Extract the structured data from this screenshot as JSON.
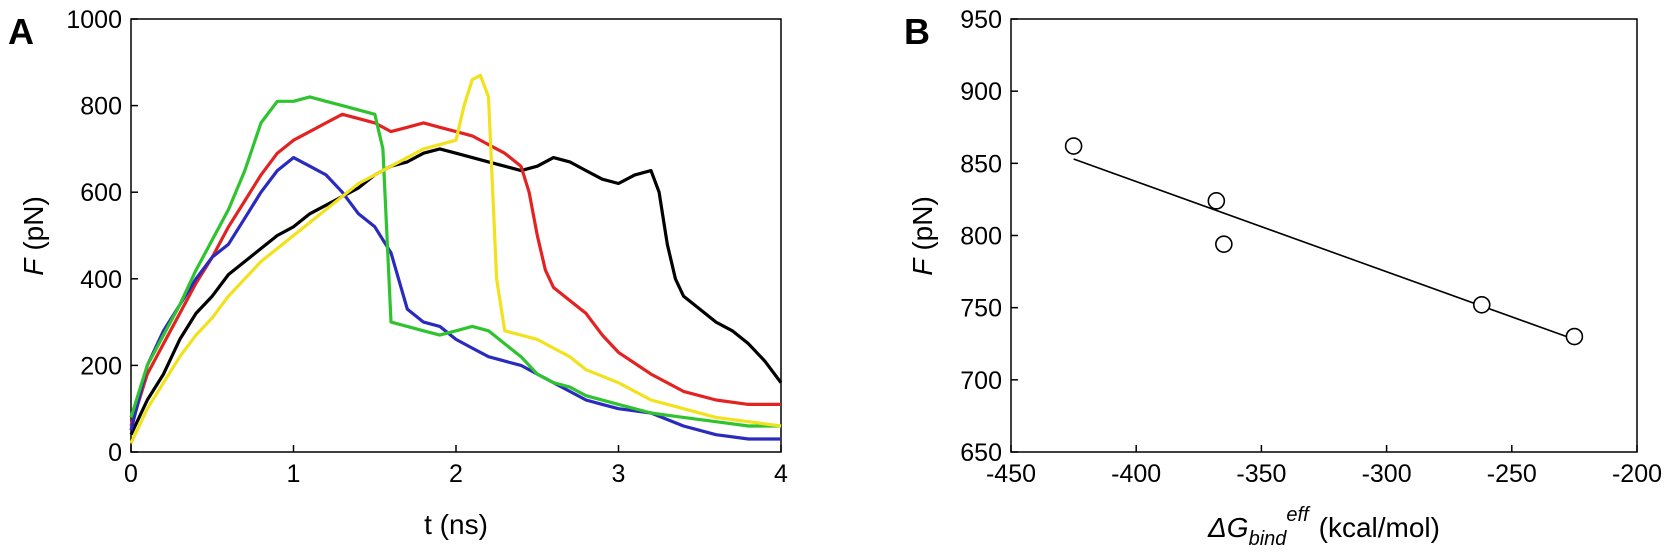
{
  "chart_data": [
    {
      "panel_label": "A",
      "type": "line",
      "xlabel": "t (ns)",
      "ylabel_symbol": "F",
      "ylabel_unit": "(pN)",
      "xlim": [
        0,
        4
      ],
      "ylim": [
        0,
        1000
      ],
      "xticks": [
        0,
        1,
        2,
        3,
        4
      ],
      "yticks": [
        0,
        200,
        400,
        600,
        800,
        1000
      ],
      "grid": false,
      "series": [
        {
          "color": "#000000",
          "x": [
            0,
            0.1,
            0.2,
            0.3,
            0.4,
            0.5,
            0.6,
            0.7,
            0.8,
            0.9,
            1.0,
            1.1,
            1.2,
            1.3,
            1.4,
            1.5,
            1.6,
            1.7,
            1.8,
            1.9,
            2.0,
            2.1,
            2.2,
            2.3,
            2.4,
            2.5,
            2.6,
            2.7,
            2.8,
            2.9,
            3.0,
            3.1,
            3.2,
            3.25,
            3.3,
            3.35,
            3.4,
            3.5,
            3.6,
            3.7,
            3.8,
            3.9,
            4.0
          ],
          "y": [
            40,
            120,
            180,
            260,
            320,
            360,
            410,
            440,
            470,
            500,
            520,
            550,
            570,
            590,
            610,
            640,
            660,
            670,
            690,
            700,
            690,
            680,
            670,
            660,
            650,
            660,
            680,
            670,
            650,
            630,
            620,
            640,
            650,
            600,
            480,
            400,
            360,
            330,
            300,
            280,
            250,
            210,
            160
          ]
        },
        {
          "color": "#e32222",
          "x": [
            0,
            0.1,
            0.2,
            0.3,
            0.4,
            0.5,
            0.6,
            0.7,
            0.8,
            0.9,
            1.0,
            1.1,
            1.2,
            1.3,
            1.4,
            1.5,
            1.6,
            1.7,
            1.8,
            1.9,
            2.0,
            2.1,
            2.2,
            2.3,
            2.4,
            2.45,
            2.5,
            2.55,
            2.6,
            2.7,
            2.8,
            2.9,
            3.0,
            3.2,
            3.4,
            3.6,
            3.8,
            4.0
          ],
          "y": [
            60,
            180,
            250,
            320,
            390,
            450,
            520,
            580,
            640,
            690,
            720,
            740,
            760,
            780,
            770,
            760,
            740,
            750,
            760,
            750,
            740,
            730,
            710,
            690,
            660,
            600,
            500,
            420,
            380,
            350,
            320,
            270,
            230,
            180,
            140,
            120,
            110,
            110
          ]
        },
        {
          "color": "#2a2abf",
          "x": [
            0,
            0.1,
            0.2,
            0.3,
            0.4,
            0.5,
            0.6,
            0.7,
            0.8,
            0.9,
            1.0,
            1.1,
            1.2,
            1.3,
            1.4,
            1.5,
            1.6,
            1.7,
            1.8,
            1.9,
            2.0,
            2.1,
            2.2,
            2.3,
            2.4,
            2.5,
            2.6,
            2.7,
            2.8,
            2.9,
            3.0,
            3.2,
            3.4,
            3.6,
            3.8,
            4.0
          ],
          "y": [
            50,
            200,
            280,
            340,
            400,
            450,
            480,
            540,
            600,
            650,
            680,
            660,
            640,
            600,
            550,
            520,
            460,
            330,
            300,
            290,
            260,
            240,
            220,
            210,
            200,
            180,
            160,
            140,
            120,
            110,
            100,
            90,
            60,
            40,
            30,
            30
          ]
        },
        {
          "color": "#2fc42f",
          "x": [
            0,
            0.1,
            0.2,
            0.3,
            0.4,
            0.5,
            0.6,
            0.7,
            0.8,
            0.9,
            1.0,
            1.1,
            1.2,
            1.3,
            1.4,
            1.5,
            1.55,
            1.6,
            1.7,
            1.8,
            1.9,
            2.0,
            2.1,
            2.2,
            2.3,
            2.4,
            2.5,
            2.6,
            2.7,
            2.8,
            3.0,
            3.2,
            3.4,
            3.6,
            3.8,
            4.0
          ],
          "y": [
            80,
            200,
            270,
            340,
            420,
            490,
            560,
            650,
            760,
            810,
            810,
            820,
            810,
            800,
            790,
            780,
            700,
            300,
            290,
            280,
            270,
            280,
            290,
            280,
            250,
            220,
            180,
            160,
            150,
            130,
            110,
            90,
            80,
            70,
            60,
            60
          ]
        },
        {
          "color": "#f2e21d",
          "x": [
            0,
            0.1,
            0.2,
            0.3,
            0.4,
            0.5,
            0.6,
            0.7,
            0.8,
            0.9,
            1.0,
            1.1,
            1.2,
            1.3,
            1.4,
            1.5,
            1.6,
            1.7,
            1.8,
            1.9,
            2.0,
            2.05,
            2.1,
            2.15,
            2.2,
            2.25,
            2.3,
            2.4,
            2.5,
            2.6,
            2.7,
            2.8,
            3.0,
            3.2,
            3.4,
            3.6,
            3.8,
            4.0
          ],
          "y": [
            20,
            100,
            160,
            220,
            270,
            310,
            360,
            400,
            440,
            470,
            500,
            530,
            560,
            590,
            620,
            640,
            660,
            680,
            700,
            710,
            720,
            800,
            860,
            870,
            820,
            400,
            280,
            270,
            260,
            240,
            220,
            190,
            160,
            120,
            100,
            80,
            70,
            60
          ]
        }
      ]
    },
    {
      "panel_label": "B",
      "type": "scatter",
      "xlabel_symbol": "ΔG",
      "xlabel_sub": "bind",
      "xlabel_sup": "eff",
      "xlabel_unit": "(kcal/mol)",
      "ylabel_symbol": "F",
      "ylabel_unit": "(pN)",
      "xlim": [
        -450,
        -200
      ],
      "ylim": [
        650,
        950
      ],
      "xticks": [
        -450,
        -400,
        -350,
        -300,
        -250,
        -200
      ],
      "yticks": [
        650,
        700,
        750,
        800,
        850,
        900,
        950
      ],
      "grid": false,
      "points": {
        "x": [
          -425,
          -368,
          -365,
          -262,
          -225
        ],
        "y": [
          862,
          824,
          794,
          752,
          730
        ]
      },
      "fit_line": {
        "x": [
          -425,
          -225
        ],
        "y": [
          853,
          728
        ]
      }
    }
  ]
}
